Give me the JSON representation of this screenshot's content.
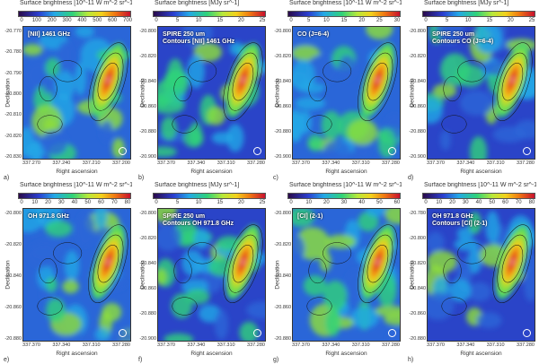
{
  "figure": {
    "panels": [
      {
        "letter": "a)",
        "cbar_title": "Surface brightness [10^-11 W m^-2 sr^-1]",
        "cbar_ticks": [
          "0",
          "100",
          "200",
          "300",
          "400",
          "500",
          "600",
          "700"
        ],
        "labels": [
          "[NII] 1461 GHz"
        ],
        "yticks": [
          "-20.770",
          "-20.780",
          "-20.790",
          "-20.800",
          "-20.810",
          "-20.820",
          "-20.830"
        ],
        "xticks": [
          "337.270",
          "337.240",
          "337.210",
          "337.200"
        ],
        "ylabel": "Declination",
        "xlabel": "Right ascension"
      },
      {
        "letter": "b)",
        "cbar_title": "Surface brightness [MJy sr^-1]",
        "cbar_ticks": [
          "0",
          "5",
          "10",
          "15",
          "20",
          "25"
        ],
        "labels": [
          "SPIRE 250 um",
          "Contours [NII] 1461 GHz"
        ],
        "yticks": [
          "-20.800",
          "-20.820",
          "-20.840",
          "-20.860",
          "-20.880",
          "-20.900"
        ],
        "xticks": [
          "337.370",
          "337.340",
          "337.310",
          "337.280"
        ],
        "ylabel": "Declination",
        "xlabel": "Right ascension"
      },
      {
        "letter": "c)",
        "cbar_title": "Surface brightness [10^-11 W m^-2 sr^-1]",
        "cbar_ticks": [
          "0",
          "5",
          "10",
          "15",
          "20",
          "25",
          "30"
        ],
        "labels": [
          "CO (J=6-4)"
        ],
        "yticks": [
          "-20.800",
          "-20.820",
          "-20.840",
          "-20.860",
          "-20.880",
          "-20.900"
        ],
        "xticks": [
          "337.370",
          "337.340",
          "337.310",
          "337.280"
        ],
        "ylabel": "Declination",
        "xlabel": "Right ascension"
      },
      {
        "letter": "d)",
        "cbar_title": "Surface brightness [MJy sr^-1]",
        "cbar_ticks": [
          "0",
          "5",
          "10",
          "15",
          "20",
          "25"
        ],
        "labels": [
          "SPIRE 250 um",
          "Contours CO (J=6-4)"
        ],
        "yticks": [
          "-20.800",
          "-20.820",
          "-20.840",
          "-20.860",
          "-20.880",
          "-20.900"
        ],
        "xticks": [
          "337.370",
          "337.340",
          "337.310",
          "337.280"
        ],
        "ylabel": "Declination",
        "xlabel": "Right ascension"
      },
      {
        "letter": "e)",
        "cbar_title": "Surface brightness [10^-11 W m^-2 sr^-1]",
        "cbar_ticks": [
          "0",
          "10",
          "20",
          "30",
          "40",
          "50",
          "60",
          "70",
          "80"
        ],
        "labels": [
          "OH 971.8 GHz"
        ],
        "yticks": [
          "-20.800",
          "-20.820",
          "-20.840",
          "-20.860",
          "-20.880"
        ],
        "xticks": [
          "337.370",
          "337.340",
          "337.310",
          "337.280"
        ],
        "ylabel": "Declination",
        "xlabel": "Right ascension"
      },
      {
        "letter": "f)",
        "cbar_title": "Surface brightness [MJy sr^-1]",
        "cbar_ticks": [
          "0",
          "5",
          "10",
          "15",
          "20",
          "25"
        ],
        "labels": [
          "SPIRE 250 um",
          "Contours OH 971.8 GHz"
        ],
        "yticks": [
          "-20.800",
          "-20.820",
          "-20.840",
          "-20.860",
          "-20.880",
          "-20.900"
        ],
        "xticks": [
          "337.370",
          "337.340",
          "337.310",
          "337.280"
        ],
        "ylabel": "Declination",
        "xlabel": "Right ascension"
      },
      {
        "letter": "g)",
        "cbar_title": "Surface brightness [10^-11 W m^-2 sr^-1]",
        "cbar_ticks": [
          "0",
          "10",
          "20",
          "30",
          "40",
          "50",
          "60"
        ],
        "labels": [
          "[CI] (2-1)"
        ],
        "yticks": [
          "-20.800",
          "-20.820",
          "-20.840",
          "-20.860",
          "-20.880"
        ],
        "xticks": [
          "337.370",
          "337.340",
          "337.310",
          "337.280"
        ],
        "ylabel": "Declination",
        "xlabel": "Right ascension"
      },
      {
        "letter": "h)",
        "cbar_title": "Surface brightness [10^-11 W m^-2 sr^-1]",
        "cbar_ticks": [
          "0",
          "10",
          "20",
          "30",
          "40",
          "50",
          "60",
          "70",
          "80"
        ],
        "labels": [
          "OH 971.8 GHz",
          "Contours [CI] (2-1)"
        ],
        "yticks": [
          "-20.780",
          "-20.800",
          "-20.820",
          "-20.840",
          "-20.860",
          "-20.880"
        ],
        "xticks": [
          "337.370",
          "337.340",
          "337.310",
          "337.280"
        ],
        "ylabel": "Declination",
        "xlabel": "Right ascension"
      }
    ]
  }
}
